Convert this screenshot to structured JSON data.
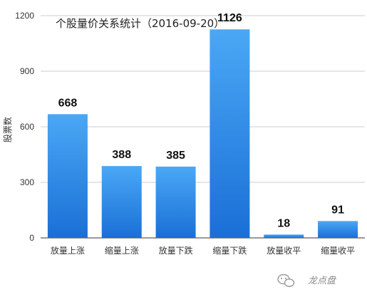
{
  "chart_data": {
    "type": "bar",
    "title": "个股量价关系统计（2016-09-20）",
    "ylabel": "股票数",
    "categories": [
      "放量上涨",
      "缩量上涨",
      "放量下跌",
      "缩量下跌",
      "放量收平",
      "缩量收平"
    ],
    "values": [
      668,
      388,
      385,
      1126,
      18,
      91
    ],
    "ylim": [
      0,
      1200
    ],
    "yticks": [
      0,
      300,
      600,
      900,
      1200
    ],
    "grid": true,
    "bar_color_top": "#4aa8f5",
    "bar_color_bottom": "#1a6fd6"
  },
  "watermark": {
    "icon": "wechat-icon",
    "text": "龙点盘"
  }
}
